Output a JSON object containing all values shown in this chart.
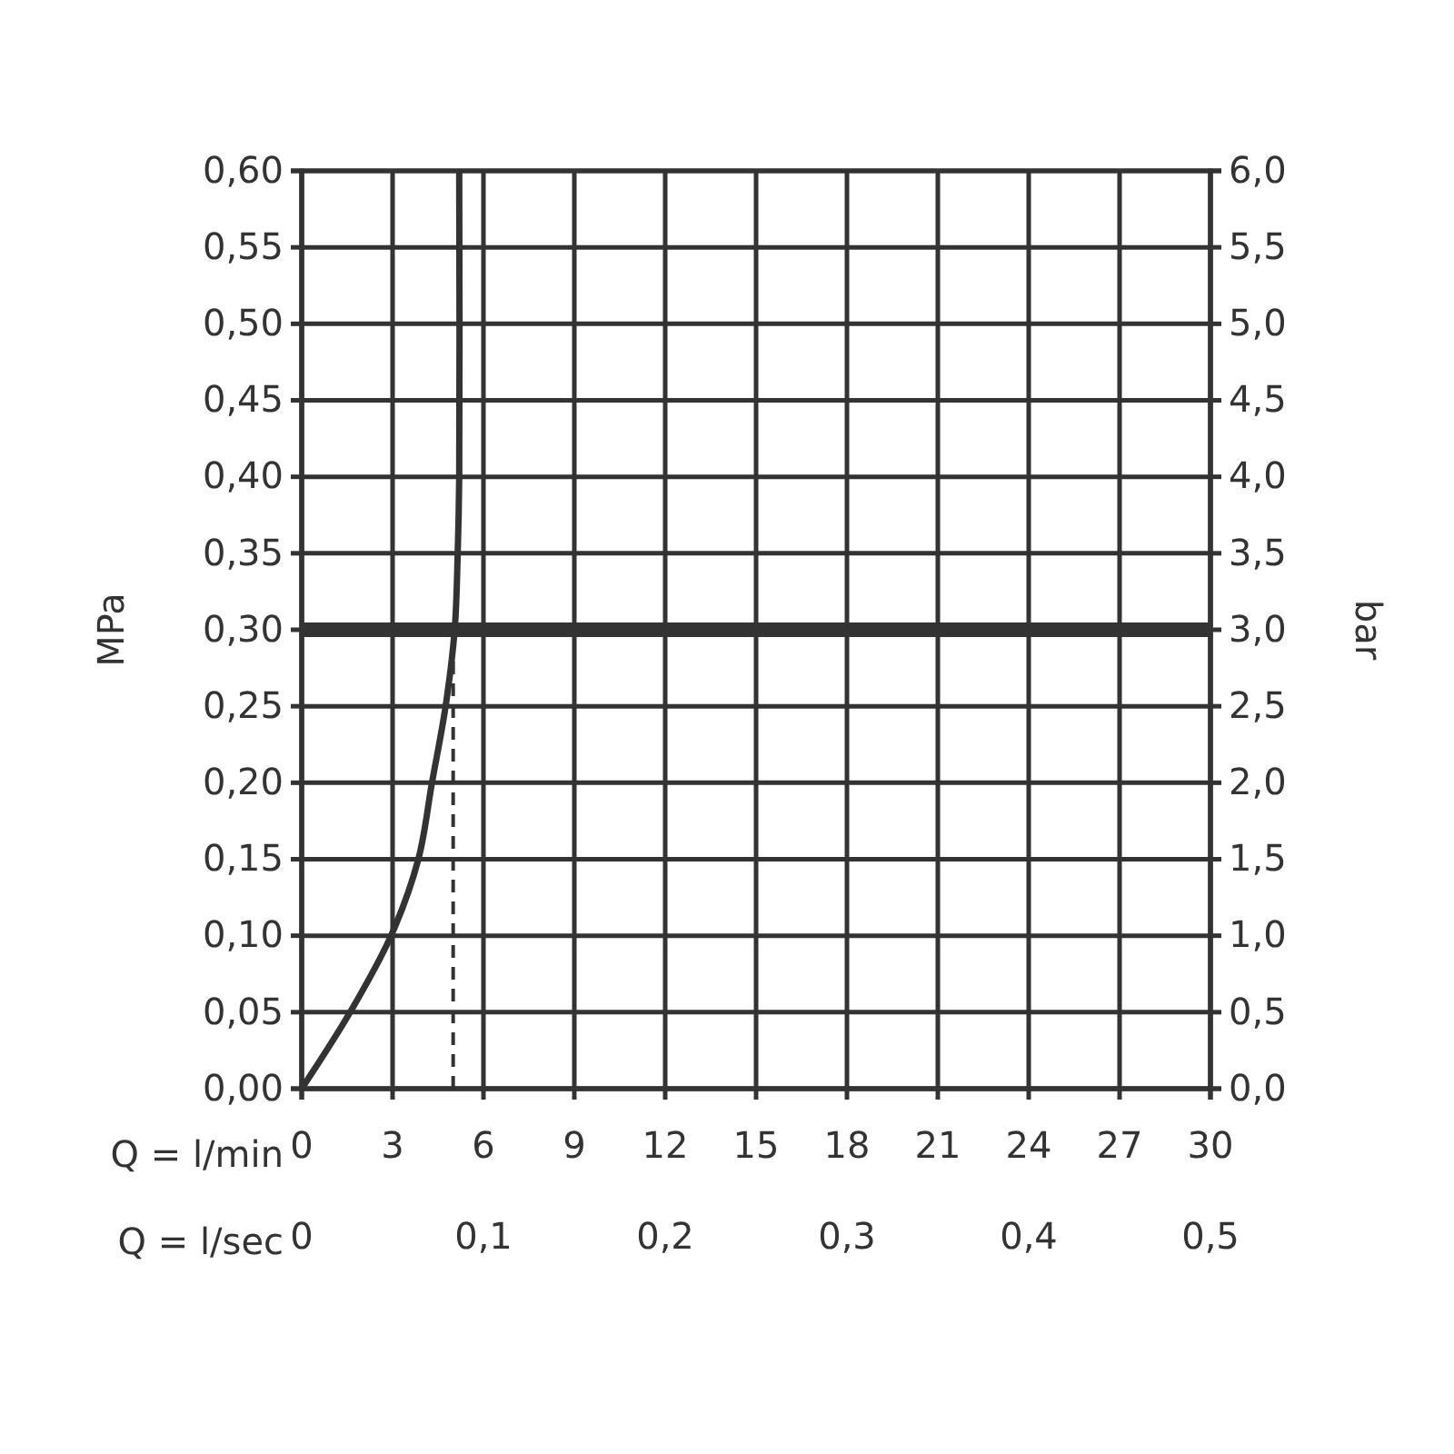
{
  "chart_data": {
    "type": "line",
    "xlabel": "Q = l/min",
    "ylabel": "MPa",
    "y2label": "bar",
    "x2label": "Q = l/sec",
    "xlim": [
      0,
      30
    ],
    "xticks": [
      0,
      3,
      6,
      9,
      12,
      15,
      18,
      21,
      24,
      27,
      30
    ],
    "x2lim": [
      0,
      0.5
    ],
    "x2ticks": [
      0,
      {
        "value": 0.1,
        "label": "0,1"
      },
      {
        "value": 0.2,
        "label": "0,2"
      },
      {
        "value": 0.3,
        "label": "0,3"
      },
      {
        "value": 0.4,
        "label": "0,4"
      },
      {
        "value": 0.5,
        "label": "0,5"
      }
    ],
    "ylim": [
      0,
      0.6
    ],
    "yticks": [
      {
        "value": 0,
        "label": "0,00"
      },
      {
        "value": 0.05,
        "label": "0,05"
      },
      {
        "value": 0.1,
        "label": "0,10"
      },
      {
        "value": 0.15,
        "label": "0,15"
      },
      {
        "value": 0.2,
        "label": "0,20"
      },
      {
        "value": 0.25,
        "label": "0,25"
      },
      {
        "value": 0.3,
        "label": "0,30"
      },
      {
        "value": 0.35,
        "label": "0,35"
      },
      {
        "value": 0.4,
        "label": "0,40"
      },
      {
        "value": 0.45,
        "label": "0,45"
      },
      {
        "value": 0.5,
        "label": "0,50"
      },
      {
        "value": 0.55,
        "label": "0,55"
      },
      {
        "value": 0.6,
        "label": "0,60"
      }
    ],
    "y2lim": [
      0,
      6
    ],
    "y2ticks": [
      {
        "value": 0,
        "label": "0,0"
      },
      {
        "value": 0.5,
        "label": "0,5"
      },
      {
        "value": 1,
        "label": "1,0"
      },
      {
        "value": 1.5,
        "label": "1,5"
      },
      {
        "value": 2,
        "label": "2,0"
      },
      {
        "value": 2.5,
        "label": "2,5"
      },
      {
        "value": 3,
        "label": "3,0"
      },
      {
        "value": 3.5,
        "label": "3,5"
      },
      {
        "value": 4,
        "label": "4,0"
      },
      {
        "value": 4.5,
        "label": "4,5"
      },
      {
        "value": 5,
        "label": "5,0"
      },
      {
        "value": 5.5,
        "label": "5,5"
      },
      {
        "value": 6,
        "label": "6,0"
      }
    ],
    "grid": true,
    "series": [
      {
        "color": "#333333",
        "line_style": "solid",
        "x": [
          0,
          1.6,
          2.95,
          3.85,
          4.3,
          4.75,
          5.05,
          5.15,
          5.2,
          5.2
        ],
        "values": [
          0,
          0.05,
          0.1,
          0.15,
          0.2,
          0.25,
          0.3,
          0.35,
          0.4,
          0.6
        ]
      },
      {
        "color": "#333333",
        "line_style": "dashed",
        "x": [
          5,
          5
        ],
        "values": [
          0,
          0.3
        ]
      }
    ],
    "ref_lines": [
      {
        "axis": "y",
        "value": 0.3,
        "color": "#333333"
      }
    ]
  }
}
